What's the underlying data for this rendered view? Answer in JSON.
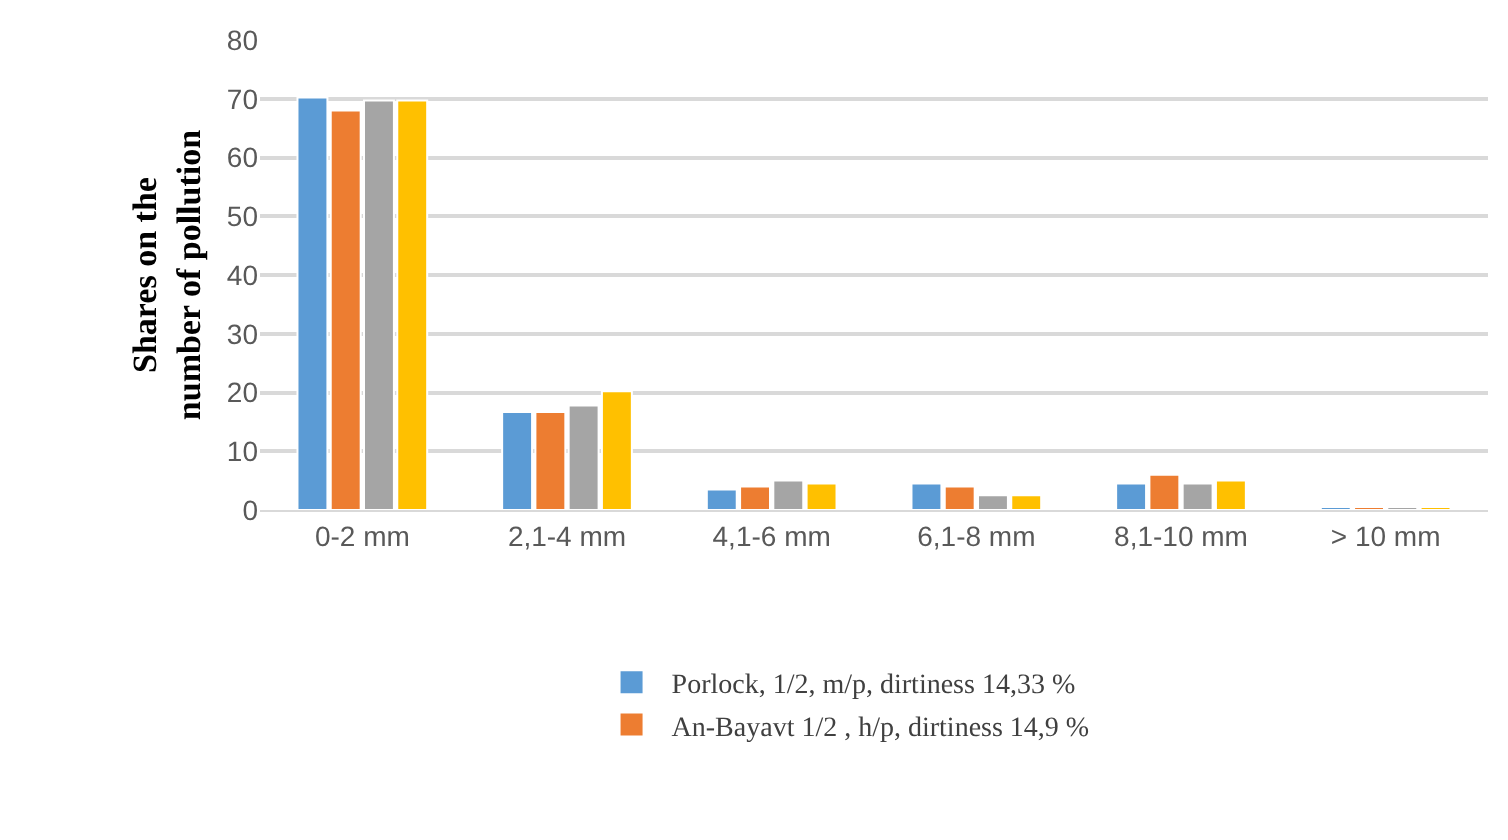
{
  "chart_data": {
    "type": "bar",
    "ylabel": "Shares on the number of pollution",
    "categories": [
      "0-2 mm",
      "2,1-4 mm",
      "4,1-6 mm",
      "6,1-8 mm",
      "8,1-10 mm",
      "> 10 mm"
    ],
    "series": [
      {
        "name": "Porlock, 1/2, m/p, dirtiness 14,33 %",
        "color": "#5b9bd5",
        "values": [
          70.2,
          16.7,
          3.5,
          4.5,
          4.5,
          0.5
        ]
      },
      {
        "name": "An-Bayavt 1/2 , h/p, dirtiness 14,9 %",
        "color": "#ed7d31",
        "values": [
          68,
          16.7,
          4,
          4,
          6,
          0.5
        ]
      },
      {
        "color": "#a5a5a5",
        "values": [
          69.7,
          17.8,
          5,
          2.5,
          4.5,
          0.5
        ]
      },
      {
        "color": "#ffc000",
        "values": [
          69.7,
          20.2,
          4.5,
          2.5,
          5,
          0.5
        ]
      }
    ],
    "ylim": [
      0,
      80
    ],
    "yticks": [
      0,
      10,
      20,
      30,
      40,
      50,
      60,
      70,
      80
    ],
    "grid": "y",
    "legend": "bottom"
  }
}
